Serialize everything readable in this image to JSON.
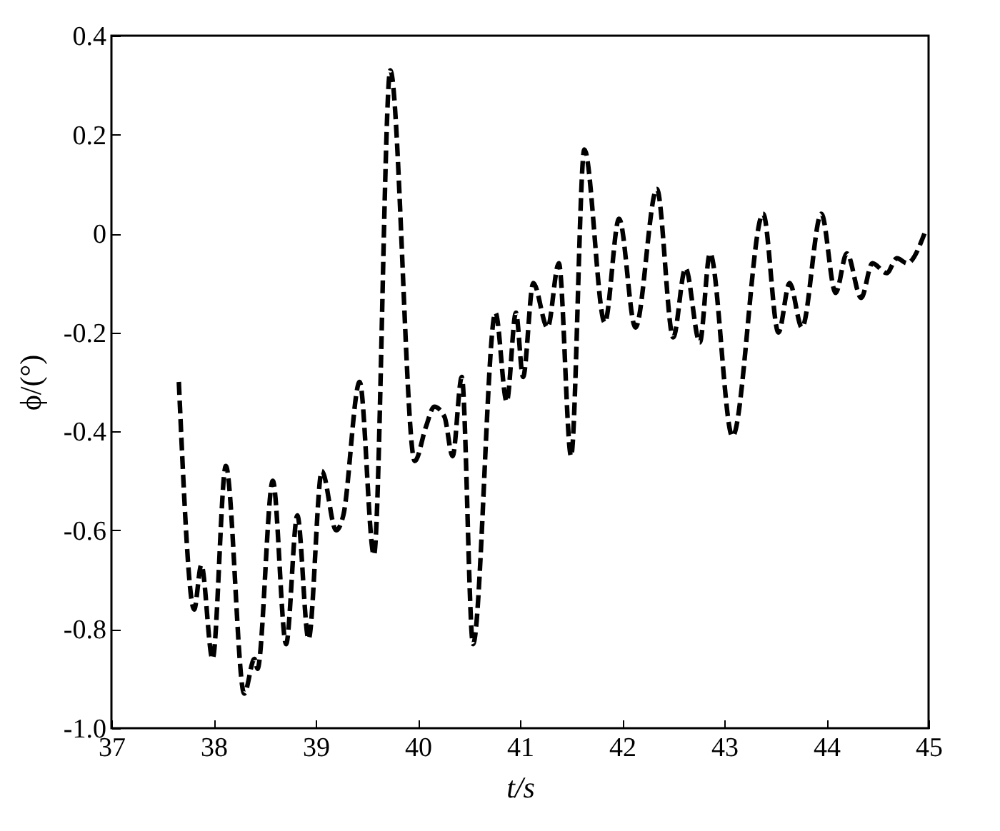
{
  "chart_data": {
    "type": "line",
    "xlabel": "t/s",
    "ylabel": "ϕ/(°)",
    "xlim": [
      37,
      45
    ],
    "ylim": [
      -1.0,
      0.4
    ],
    "xticks": [
      37,
      38,
      39,
      40,
      41,
      42,
      43,
      44,
      45
    ],
    "yticks": [
      {
        "value": -1.0,
        "label": "-1.0"
      },
      -0.8,
      -0.6,
      -0.4,
      -0.2,
      0,
      0.2,
      0.4
    ],
    "grid": false,
    "line_style": "dashed",
    "marker": "none",
    "series": [
      {
        "color": "#000000",
        "x": [
          37.66,
          37.81,
          37.88,
          37.99,
          38.12,
          38.3,
          38.4,
          38.43,
          38.58,
          38.71,
          38.82,
          38.93,
          39.06,
          39.2,
          39.27,
          39.43,
          39.57,
          39.73,
          39.97,
          40.08,
          40.16,
          40.26,
          40.34,
          40.43,
          40.54,
          40.76,
          40.87,
          40.96,
          41.03,
          41.13,
          41.27,
          41.38,
          41.5,
          41.63,
          41.83,
          41.97,
          42.13,
          42.34,
          42.5,
          42.62,
          42.76,
          42.86,
          43.08,
          43.38,
          43.53,
          43.64,
          43.76,
          43.95,
          44.09,
          44.2,
          44.34,
          44.45,
          44.59,
          44.69,
          44.79,
          44.96
        ],
        "values": [
          -0.3,
          -0.76,
          -0.67,
          -0.86,
          -0.47,
          -0.93,
          -0.86,
          -0.88,
          -0.5,
          -0.83,
          -0.57,
          -0.82,
          -0.48,
          -0.6,
          -0.57,
          -0.3,
          -0.65,
          0.33,
          -0.46,
          -0.39,
          -0.35,
          -0.37,
          -0.45,
          -0.29,
          -0.83,
          -0.16,
          -0.34,
          -0.16,
          -0.29,
          -0.1,
          -0.19,
          -0.06,
          -0.45,
          0.17,
          -0.18,
          0.03,
          -0.19,
          0.09,
          -0.21,
          -0.07,
          -0.22,
          -0.04,
          -0.41,
          0.04,
          -0.2,
          -0.1,
          -0.19,
          0.04,
          -0.12,
          -0.04,
          -0.13,
          -0.06,
          -0.08,
          -0.05,
          -0.06,
          0.0
        ]
      }
    ]
  }
}
